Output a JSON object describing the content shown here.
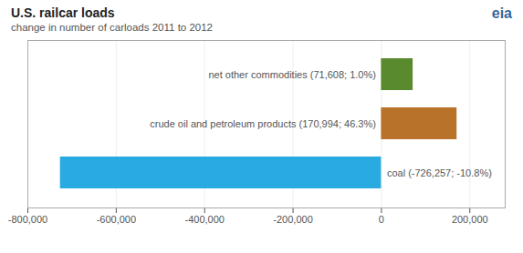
{
  "chart_data": {
    "type": "bar",
    "orientation": "horizontal",
    "title": "U.S. railcar loads",
    "subtitle": "change in number of carloads 2011 to 2012",
    "annotations": [
      "eia"
    ],
    "categories": [
      "net other commodities (71,608; 1.0%)",
      "crude oil and petroleum products (170,994; 46.3%)",
      "coal (-726,257; -10.8%)"
    ],
    "values": [
      71608,
      170994,
      -726257
    ],
    "colors": [
      "#5a8a2e",
      "#b8722a",
      "#29abe2"
    ],
    "xlim": [
      -800000,
      280000
    ],
    "xticks": [
      {
        "value": -800000,
        "label": "-800,000"
      },
      {
        "value": -600000,
        "label": "-600,000"
      },
      {
        "value": -400000,
        "label": "-400,000"
      },
      {
        "value": -200000,
        "label": "-200,000"
      },
      0,
      {
        "value": 200000,
        "label": "200,000"
      }
    ],
    "grid": true,
    "tick_labels": "x"
  }
}
